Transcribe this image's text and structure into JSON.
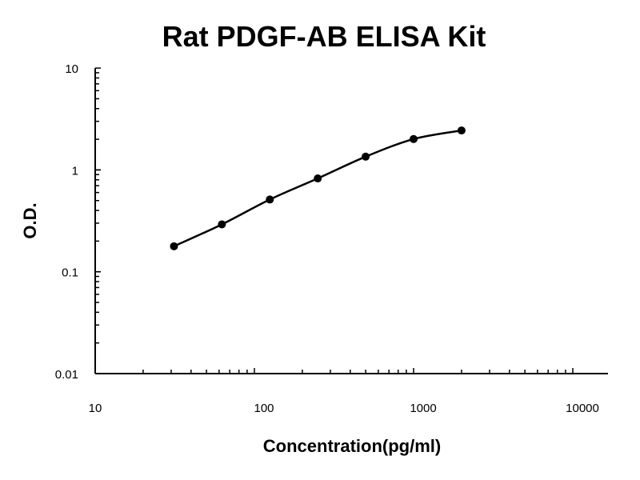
{
  "chart_data": {
    "type": "line",
    "title": "Rat PDGF-AB ELISA Kit",
    "xlabel": "Concentration(pg/ml)",
    "ylabel": "O.D.",
    "x_scale": "log",
    "y_scale": "log",
    "xlim": [
      10,
      10000
    ],
    "ylim": [
      0.01,
      10
    ],
    "x_ticks": [
      "10",
      "100",
      "1000",
      "10000"
    ],
    "y_ticks": [
      "10",
      "1",
      "0.1",
      "0.01"
    ],
    "grid": false,
    "series": [
      {
        "x": [
          31.25,
          62.5,
          125,
          250,
          500,
          1000,
          2000
        ],
        "y": [
          0.178,
          0.292,
          0.512,
          0.825,
          1.35,
          2.01,
          2.44
        ],
        "color": "#000000",
        "marker": "circle"
      }
    ]
  }
}
